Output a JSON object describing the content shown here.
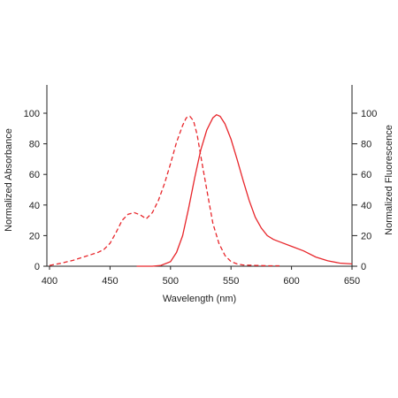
{
  "chart_data": {
    "type": "line",
    "xlabel": "Wavelength (nm)",
    "ylabel_left": "Normalized Absorbance",
    "ylabel_right": "Normalized Fluorescence",
    "xlim": [
      400,
      650
    ],
    "ylim": [
      0,
      118
    ],
    "x_ticks": [
      400,
      450,
      500,
      550,
      600,
      650
    ],
    "y_ticks": [
      0,
      20,
      40,
      60,
      80,
      100
    ],
    "grid": false,
    "legend": "none",
    "series": [
      {
        "style": "dashed",
        "color": "#e8262b",
        "axis": "left",
        "points": [
          [
            400,
            0.5
          ],
          [
            410,
            2
          ],
          [
            420,
            4
          ],
          [
            430,
            6.5
          ],
          [
            440,
            9
          ],
          [
            445,
            11
          ],
          [
            450,
            15
          ],
          [
            455,
            22
          ],
          [
            460,
            30
          ],
          [
            465,
            34
          ],
          [
            470,
            35
          ],
          [
            475,
            33.5
          ],
          [
            480,
            31
          ],
          [
            485,
            35
          ],
          [
            490,
            43
          ],
          [
            495,
            54
          ],
          [
            500,
            67
          ],
          [
            505,
            81
          ],
          [
            510,
            92
          ],
          [
            513,
            97
          ],
          [
            516,
            98
          ],
          [
            519,
            95
          ],
          [
            522,
            86
          ],
          [
            525,
            72
          ],
          [
            530,
            50
          ],
          [
            535,
            28
          ],
          [
            540,
            15
          ],
          [
            545,
            7
          ],
          [
            550,
            3
          ],
          [
            555,
            1.5
          ],
          [
            560,
            0.8
          ],
          [
            570,
            0.5
          ],
          [
            580,
            0.3
          ],
          [
            590,
            0.3
          ]
        ]
      },
      {
        "style": "solid",
        "color": "#e8262b",
        "axis": "right",
        "points": [
          [
            472,
            0
          ],
          [
            485,
            0
          ],
          [
            492,
            0.5
          ],
          [
            500,
            3
          ],
          [
            505,
            9
          ],
          [
            510,
            20
          ],
          [
            515,
            38
          ],
          [
            520,
            58
          ],
          [
            525,
            76
          ],
          [
            530,
            89
          ],
          [
            535,
            97
          ],
          [
            538,
            99
          ],
          [
            541,
            98
          ],
          [
            545,
            93
          ],
          [
            550,
            83
          ],
          [
            555,
            70
          ],
          [
            560,
            56
          ],
          [
            565,
            43
          ],
          [
            570,
            32
          ],
          [
            575,
            25
          ],
          [
            580,
            20
          ],
          [
            585,
            17.5
          ],
          [
            590,
            16
          ],
          [
            600,
            13
          ],
          [
            610,
            10
          ],
          [
            620,
            6
          ],
          [
            630,
            3.5
          ],
          [
            640,
            2
          ],
          [
            650,
            1.5
          ]
        ]
      }
    ]
  }
}
